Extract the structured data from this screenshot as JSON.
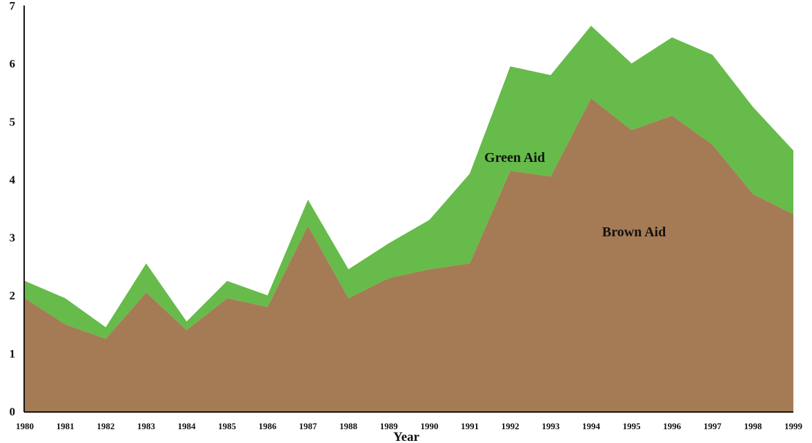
{
  "chart_data": {
    "type": "area",
    "stacked": true,
    "xlabel": "Year",
    "ylabel": "",
    "ylim": [
      0,
      7
    ],
    "yticks": [
      0,
      1,
      2,
      3,
      4,
      5,
      6,
      7
    ],
    "grid": false,
    "legend": "inline labels on areas",
    "categories": [
      "1980",
      "1981",
      "1982",
      "1983",
      "1984",
      "1985",
      "1986",
      "1987",
      "1988",
      "1989",
      "1990",
      "1991",
      "1992",
      "1993",
      "1994",
      "1995",
      "1996",
      "1997",
      "1998",
      "1999"
    ],
    "series": [
      {
        "name": "Brown Aid",
        "color": "#a57b55",
        "values": [
          1.95,
          1.5,
          1.25,
          2.05,
          1.4,
          1.95,
          1.8,
          3.2,
          1.95,
          2.3,
          2.45,
          2.55,
          4.15,
          4.05,
          5.4,
          4.85,
          5.1,
          4.6,
          3.75,
          3.4
        ]
      },
      {
        "name": "Green Aid",
        "color": "#66bb4a",
        "values": [
          0.3,
          0.45,
          0.2,
          0.5,
          0.15,
          0.3,
          0.2,
          0.45,
          0.5,
          0.6,
          0.85,
          1.55,
          1.8,
          1.75,
          1.25,
          1.15,
          1.35,
          1.55,
          1.5,
          1.1
        ]
      }
    ]
  }
}
